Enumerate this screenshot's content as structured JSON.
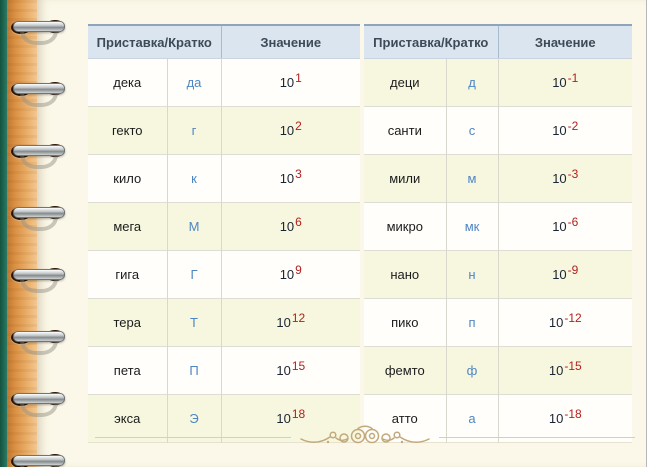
{
  "tables": [
    {
      "id": "multiples",
      "header": {
        "prefix_short": "Приставка/Кратко",
        "value": "Значение"
      },
      "value_base": "10",
      "first_row_tinted": false,
      "rows": [
        {
          "prefix": "дека",
          "short": "да",
          "exp": "1"
        },
        {
          "prefix": "гекто",
          "short": "г",
          "exp": "2"
        },
        {
          "prefix": "кило",
          "short": "к",
          "exp": "3"
        },
        {
          "prefix": "мега",
          "short": "М",
          "exp": "6"
        },
        {
          "prefix": "гига",
          "short": "Г",
          "exp": "9"
        },
        {
          "prefix": "тера",
          "short": "Т",
          "exp": "12"
        },
        {
          "prefix": "пета",
          "short": "П",
          "exp": "15"
        },
        {
          "prefix": "экса",
          "short": "Э",
          "exp": "18"
        }
      ]
    },
    {
      "id": "submultiples",
      "header": {
        "prefix_short": "Приставка/Кратко",
        "value": "Значение"
      },
      "value_base": "10",
      "first_row_tinted": true,
      "rows": [
        {
          "prefix": "деци",
          "short": "д",
          "exp": "-1"
        },
        {
          "prefix": "санти",
          "short": "с",
          "exp": "-2"
        },
        {
          "prefix": "мили",
          "short": "м",
          "exp": "-3"
        },
        {
          "prefix": "микро",
          "short": "мк",
          "exp": "-6"
        },
        {
          "prefix": "нано",
          "short": "н",
          "exp": "-9"
        },
        {
          "prefix": "пико",
          "short": "п",
          "exp": "-12"
        },
        {
          "prefix": "фемто",
          "short": "ф",
          "exp": "-15"
        },
        {
          "prefix": "атто",
          "short": "а",
          "exp": "-18"
        }
      ]
    }
  ],
  "decor": {
    "binder_rings_count": 8
  },
  "colors": {
    "spine_green": "#216a57",
    "wood": "#dd9a4e",
    "page_bg": "#fcf8e9",
    "header_bg": "#dbe5ef",
    "header_text": "#3d4b58",
    "row_tint": "#f7f7df",
    "row_plain": "#fffefb",
    "abbreviation_text": "#4e86c4",
    "exponent_text": "#b32020",
    "ornament": "#c2a87a"
  }
}
